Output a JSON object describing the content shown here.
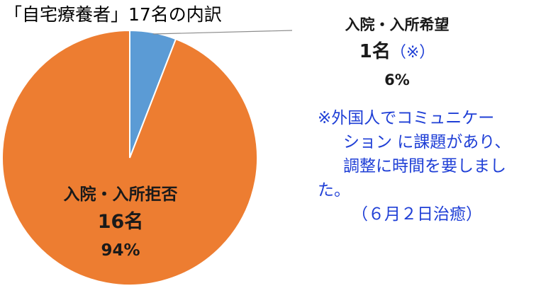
{
  "chart_data": {
    "type": "pie",
    "title": "「自宅療養者」17名の内訳",
    "start_angle_deg": 0,
    "direction": "clockwise",
    "slices": [
      {
        "label": "入院・入所希望",
        "count_label": "1名",
        "count_note": "（※）",
        "count": 1,
        "percent": 6,
        "percent_label": "6%",
        "color": "#5b9bd5"
      },
      {
        "label": "入院・入所拒否",
        "count_label": "16名",
        "count": 16,
        "percent": 94,
        "percent_label": "94%",
        "color": "#ed7d31"
      }
    ],
    "footnote": [
      "※外国人でコミュニケー",
      "ション に課題があり、",
      "調整に時間を要しまし",
      "た。",
      "（６月２日治癒）"
    ]
  }
}
